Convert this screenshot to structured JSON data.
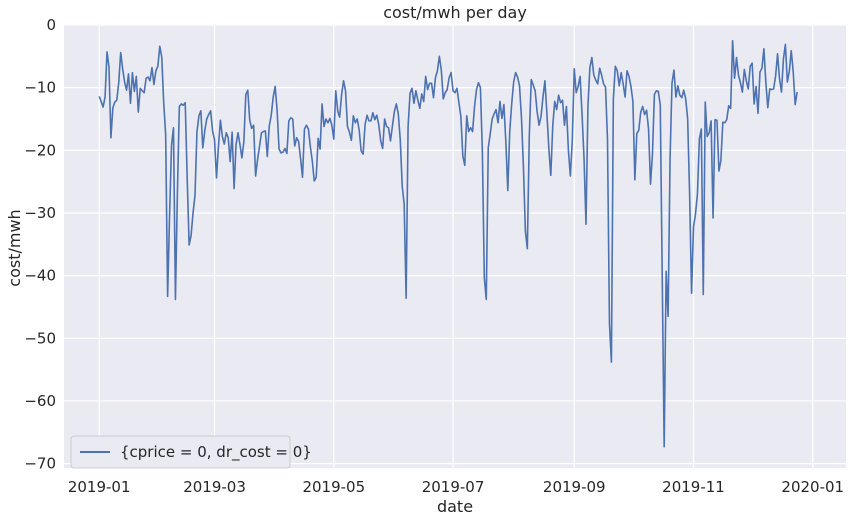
{
  "chart_data": {
    "type": "line",
    "title": "cost/mwh per day",
    "xlabel": "date",
    "ylabel": "cost/mwh",
    "xlim": [
      "2018-12-14",
      "2020-01-18"
    ],
    "ylim": [
      -70.7,
      0
    ],
    "x_ticks": [
      "2019-01-01",
      "2019-03-01",
      "2019-05-01",
      "2019-07-01",
      "2019-09-01",
      "2019-11-01",
      "2020-01-01"
    ],
    "x_tick_labels": [
      "2019-01",
      "2019-03",
      "2019-05",
      "2019-07",
      "2019-09",
      "2019-11",
      "2020-01"
    ],
    "y_ticks": [
      0,
      -10,
      -20,
      -30,
      -40,
      -50,
      -60,
      -70
    ],
    "y_tick_labels": [
      "0",
      "−10",
      "−20",
      "−30",
      "−40",
      "−50",
      "−60",
      "−70"
    ],
    "grid": true,
    "background": "#eaeaf2",
    "legend_position": "lower-left",
    "series": [
      {
        "name": "{cprice = 0, dr_cost = 0}",
        "color": "#4c72b0",
        "x_start": "2019-01-01",
        "frequency": "daily",
        "values": [
          -11.4,
          -12.2,
          -13.1,
          -11.5,
          -4.3,
          -6.7,
          -18.0,
          -13.2,
          -12.3,
          -12.0,
          -9.2,
          -4.4,
          -7.0,
          -9.1,
          -10.4,
          -7.8,
          -12.5,
          -7.6,
          -10.6,
          -8.2,
          -13.9,
          -10.1,
          -10.5,
          -10.8,
          -8.5,
          -8.3,
          -8.9,
          -6.8,
          -9.5,
          -7.3,
          -6.6,
          -3.4,
          -5.1,
          -12.4,
          -17.5,
          -43.3,
          -30.4,
          -19.2,
          -16.4,
          -43.8,
          -26.9,
          -13.0,
          -12.6,
          -12.8,
          -12.4,
          -24.3,
          -35.1,
          -33.6,
          -30.0,
          -27.2,
          -17.1,
          -14.5,
          -13.7,
          -19.6,
          -16.9,
          -15.0,
          -14.3,
          -13.7,
          -16.9,
          -18.3,
          -24.4,
          -19.4,
          -15.2,
          -17.8,
          -19.0,
          -17.2,
          -18.0,
          -21.8,
          -17.1,
          -26.1,
          -19.1,
          -17.2,
          -19.1,
          -21.2,
          -18.6,
          -11.1,
          -10.4,
          -15.2,
          -16.5,
          -16.0,
          -24.1,
          -21.5,
          -19.4,
          -17.2,
          -17.0,
          -16.9,
          -21.0,
          -16.1,
          -14.4,
          -11.5,
          -9.8,
          -13.6,
          -19.8,
          -20.4,
          -20.3,
          -19.7,
          -20.5,
          -15.3,
          -14.8,
          -15.0,
          -19.3,
          -18.0,
          -18.6,
          -21.3,
          -24.3,
          -16.6,
          -16.0,
          -16.6,
          -19.4,
          -21.7,
          -24.9,
          -24.3,
          -18.1,
          -19.8,
          -12.6,
          -16.2,
          -15.0,
          -15.6,
          -14.9,
          -16.0,
          -18.2,
          -10.5,
          -13.7,
          -14.7,
          -11.1,
          -8.9,
          -10.5,
          -16.2,
          -17.1,
          -18.4,
          -14.5,
          -15.6,
          -15.0,
          -16.8,
          -20.1,
          -20.6,
          -15.9,
          -14.4,
          -15.3,
          -15.3,
          -14.0,
          -15.1,
          -14.4,
          -15.9,
          -18.5,
          -19.7,
          -15.0,
          -16.2,
          -16.4,
          -18.5,
          -16.1,
          -13.8,
          -12.6,
          -14.2,
          -18.3,
          -25.7,
          -28.6,
          -43.6,
          -16.2,
          -10.9,
          -10.1,
          -12.5,
          -10.5,
          -12.0,
          -13.3,
          -11.0,
          -12.2,
          -8.2,
          -10.3,
          -9.3,
          -9.3,
          -11.6,
          -8.4,
          -7.3,
          -5.0,
          -7.2,
          -11.8,
          -10.8,
          -10.3,
          -8.4,
          -7.6,
          -10.5,
          -10.8,
          -10.1,
          -12.4,
          -14.6,
          -20.9,
          -22.4,
          -14.5,
          -17.0,
          -16.4,
          -17.0,
          -13.0,
          -10.3,
          -9.2,
          -10.0,
          -20.2,
          -40.4,
          -43.8,
          -19.6,
          -17.4,
          -15.0,
          -14.2,
          -13.5,
          -15.6,
          -12.2,
          -14.9,
          -12.7,
          -18.6,
          -26.4,
          -17.0,
          -12.6,
          -9.1,
          -7.6,
          -8.3,
          -9.7,
          -14.8,
          -22.6,
          -32.9,
          -35.7,
          -17.7,
          -8.7,
          -9.6,
          -10.5,
          -13.8,
          -16.0,
          -14.6,
          -11.5,
          -8.9,
          -14.1,
          -19.7,
          -24.0,
          -16.1,
          -12.2,
          -13.5,
          -11.2,
          -12.4,
          -12.0,
          -16.0,
          -13.0,
          -20.0,
          -24.1,
          -18.4,
          -7.0,
          -10.8,
          -9.8,
          -8.2,
          -14.3,
          -21.3,
          -31.8,
          -12.9,
          -6.8,
          -5.2,
          -8.0,
          -8.8,
          -9.4,
          -6.9,
          -8.0,
          -9.4,
          -9.9,
          -18.2,
          -47.6,
          -53.8,
          -11.8,
          -6.6,
          -7.3,
          -9.7,
          -7.6,
          -9.4,
          -11.5,
          -7.3,
          -8.2,
          -9.8,
          -12.2,
          -24.7,
          -17.3,
          -16.8,
          -13.9,
          -13.0,
          -14.3,
          -13.6,
          -16.6,
          -25.4,
          -20.6,
          -11.1,
          -10.5,
          -10.6,
          -12.8,
          -40.2,
          -67.3,
          -39.3,
          -46.5,
          -21.4,
          -9.3,
          -7.2,
          -11.5,
          -9.7,
          -11.2,
          -11.6,
          -10.4,
          -11.8,
          -14.9,
          -26.9,
          -42.8,
          -32.2,
          -30.2,
          -27.0,
          -18.2,
          -16.6,
          -43.0,
          -12.3,
          -17.8,
          -17.2,
          -15.3,
          -30.8,
          -15.1,
          -15.2,
          -23.3,
          -21.6,
          -15.5,
          -15.6,
          -15.1,
          -12.9,
          -13.3,
          -2.5,
          -8.5,
          -5.2,
          -8.0,
          -9.2,
          -10.7,
          -7.1,
          -8.9,
          -10.2,
          -6.6,
          -6.1,
          -12.6,
          -9.8,
          -14.1,
          -7.5,
          -6.9,
          -3.8,
          -9.2,
          -13.2,
          -10.2,
          -10.3,
          -10.2,
          -8.1,
          -4.6,
          -8.6,
          -10.7,
          -5.4,
          -3.1,
          -9.1,
          -7.4,
          -4.1,
          -7.5,
          -12.7,
          -10.7
        ]
      }
    ]
  }
}
